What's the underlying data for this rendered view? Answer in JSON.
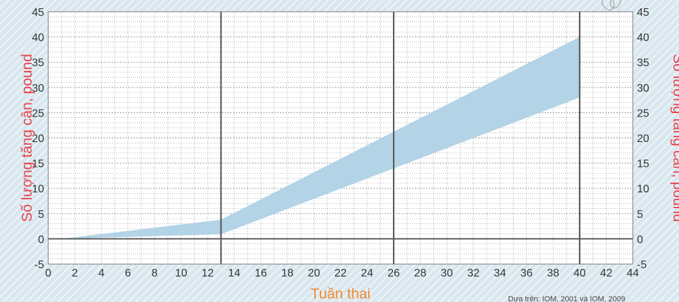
{
  "chart_data": {
    "type": "area",
    "title": "",
    "xlabel": "Tuần thai",
    "ylabel": "Số lượng tăng cân, pound",
    "ylabel_right": "Số lượng tăng cân, pound",
    "source_note": "Dựa trên: IOM, 2001 và IOM, 2009",
    "xlim": [
      0,
      44
    ],
    "ylim": [
      -5,
      45
    ],
    "x_ticks": [
      0,
      2,
      4,
      6,
      8,
      10,
      12,
      14,
      16,
      18,
      20,
      22,
      24,
      26,
      28,
      30,
      32,
      34,
      36,
      38,
      40,
      42,
      44
    ],
    "y_ticks": [
      -5,
      0,
      5,
      10,
      15,
      20,
      25,
      30,
      35,
      40,
      45
    ],
    "milestones": [
      13,
      26,
      40
    ],
    "grid": true,
    "series": [
      {
        "x": [
          1,
          13,
          40
        ],
        "values": [
          0,
          3.8,
          40
        ]
      },
      {
        "x": [
          1,
          13,
          40
        ],
        "values": [
          0,
          0.9,
          28
        ]
      }
    ],
    "colors": {
      "band": "#b3d3e6",
      "label": "#e8434b",
      "xlabel": "#f28a2c",
      "grid": "#8a8a8a",
      "bold": "#5a5a5a"
    }
  }
}
